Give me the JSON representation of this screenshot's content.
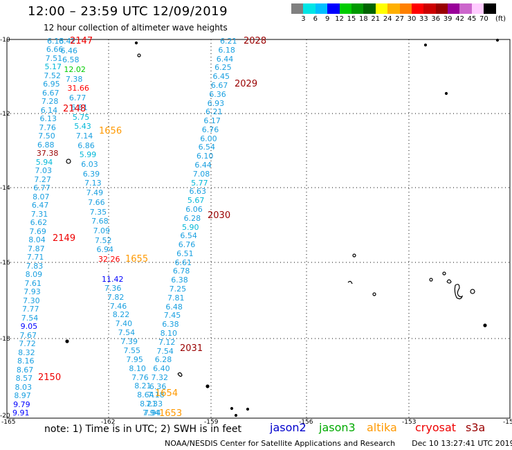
{
  "header": {
    "title": "12:00 – 23:59 UTC 12/09/2019",
    "subtitle": "12 hour collection of altimeter wave heights"
  },
  "colorbar": {
    "colors": [
      "#808080",
      "#00e5e5",
      "#00bfff",
      "#0000ff",
      "#00cc00",
      "#009900",
      "#006400",
      "#ffff00",
      "#ffb000",
      "#ff8000",
      "#ff0000",
      "#cc0000",
      "#990000",
      "#990099",
      "#cc66cc",
      "#ffccff",
      "#000000"
    ],
    "labels": [
      "3",
      "6",
      "9",
      "12",
      "15",
      "18",
      "21",
      "24",
      "27",
      "30",
      "33",
      "36",
      "39",
      "42",
      "45",
      "70"
    ],
    "unit": "(ft)"
  },
  "axes": {
    "lat_labels": [
      "-10",
      "-12",
      "-14",
      "-16",
      "-18",
      "-20"
    ],
    "lon_labels": [
      "-165",
      "-162",
      "-159",
      "-156",
      "-153",
      "-15"
    ]
  },
  "note": "note:  1) Time is in UTC;  2) SWH is in feet",
  "satellites": [
    {
      "name": "jason2",
      "color": "#0000cc"
    },
    {
      "name": "jason3",
      "color": "#00aa00"
    },
    {
      "name": "altika",
      "color": "#ff9900"
    },
    {
      "name": "cryosat",
      "color": "#ee0000"
    },
    {
      "name": "s3a",
      "color": "#990000"
    }
  ],
  "credit": "NOAA/NESDIS Center for Satellite Applications and Research",
  "timestamp": "Dec 10 13:27:41 UTC 2019",
  "pass_labels": [
    "2147",
    "2148",
    "2149",
    "2150",
    "1656",
    "1655",
    "1654",
    "1653",
    "2028",
    "2029",
    "2030",
    "2031"
  ],
  "observations": {
    "track_a": [
      "6.13",
      "6.66",
      "7.51",
      "5.17",
      "7.52",
      "6.95",
      "6.67",
      "7.28",
      "6.14",
      "6.13",
      "7.76",
      "7.50",
      "6.88",
      "37.38",
      "5.94",
      "7.03",
      "7.27",
      "6.77",
      "8.07",
      "6.47",
      "7.31",
      "6.62",
      "7.69",
      "8.04",
      "7.87",
      "7.71",
      "7.83",
      "8.09",
      "7.61",
      "7.93",
      "7.30",
      "7.77",
      "7.54",
      "9.05",
      "7.67",
      "7.72",
      "8.32",
      "8.16",
      "8.67",
      "8.57",
      "8.03",
      "8.97",
      "9.79",
      "9.91"
    ],
    "track_b": [
      "6.42",
      "6.46",
      "6.58",
      "12.02",
      "7.38",
      "31.66",
      "6.77",
      "6.81",
      "5.75",
      "5.43",
      "7.14",
      "6.86",
      "5.99",
      "6.03",
      "6.39",
      "7.13",
      "7.49",
      "7.66",
      "7.35",
      "7.68",
      "7.09",
      "7.52",
      "6.94",
      "32.26"
    ],
    "track_c": [
      "11.42",
      "7.36",
      "7.82",
      "7.46",
      "8.22",
      "7.40",
      "7.54",
      "7.39",
      "7.55",
      "7.95",
      "8.10",
      "7.76",
      "8.21",
      "8.64",
      "8.21",
      "7.94"
    ],
    "track_d": [
      "6.21",
      "6.18",
      "6.44",
      "6.25",
      "6.45",
      "6.67",
      "6.36",
      "6.93",
      "6.21",
      "6.17",
      "6.76",
      "6.00",
      "6.54",
      "6.10",
      "6.44",
      "7.08",
      "5.77",
      "6.63",
      "5.67",
      "6.06",
      "6.28",
      "5.90",
      "6.54",
      "6.76",
      "6.51",
      "6.61",
      "6.78",
      "6.38",
      "7.25",
      "7.81",
      "6.48",
      "7.45",
      "6.38",
      "8.10",
      "7.12",
      "7.54",
      "6.28",
      "6.40",
      "7.32",
      "6.36",
      "7.18",
      "7.33",
      "7.94"
    ]
  }
}
